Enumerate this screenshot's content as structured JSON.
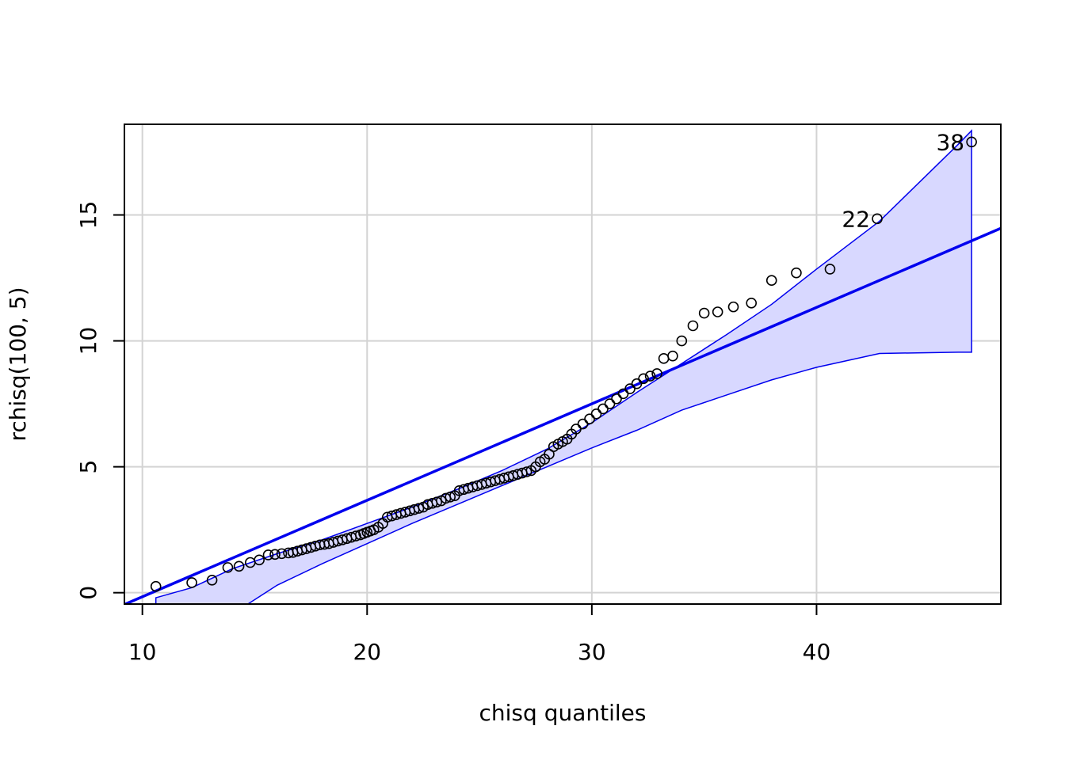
{
  "chart_data": {
    "type": "scatter",
    "xlabel": "chisq quantiles",
    "ylabel": "rchisq(100, 5)",
    "xlim": [
      9.2,
      48.2
    ],
    "ylim": [
      -0.45,
      18.6
    ],
    "x_ticks": [
      10,
      20,
      30,
      40
    ],
    "y_ticks": [
      0,
      5,
      10,
      15
    ],
    "x_tick_labels": [
      "10",
      "20",
      "30",
      "40"
    ],
    "y_tick_labels": [
      "0",
      "5",
      "10",
      "15"
    ],
    "grid": true,
    "colors": {
      "points": "#000000",
      "reference_line": "#0000ee",
      "band_fill": "#d8d8ff",
      "band_edge": "#0000ee",
      "grid": "#d3d3d3"
    },
    "reference_line": {
      "intercept": -3.99,
      "slope": 0.383
    },
    "band": {
      "x": [
        10.6,
        12.2,
        14.0,
        16.0,
        18.0,
        20.0,
        22.0,
        24.0,
        26.0,
        28.0,
        30.0,
        32.0,
        34.0,
        36.0,
        38.0,
        40.0,
        42.8,
        46.3,
        46.9
      ],
      "upper": [
        -0.2,
        0.2,
        0.95,
        1.55,
        2.1,
        2.75,
        3.4,
        4.1,
        4.85,
        5.7,
        6.75,
        7.95,
        9.1,
        10.25,
        11.45,
        12.85,
        14.75,
        17.8,
        18.35
      ],
      "lower": [
        -2.5,
        -1.9,
        -0.85,
        0.3,
        1.15,
        1.95,
        2.75,
        3.5,
        4.25,
        5.0,
        5.75,
        6.45,
        7.25,
        7.85,
        8.45,
        8.95,
        9.5,
        9.55,
        9.55
      ]
    },
    "points": {
      "x": [
        10.6,
        12.2,
        13.1,
        13.8,
        14.3,
        14.8,
        15.2,
        15.6,
        15.9,
        16.2,
        16.5,
        16.7,
        16.9,
        17.1,
        17.3,
        17.5,
        17.7,
        17.9,
        18.1,
        18.3,
        18.5,
        18.7,
        18.9,
        19.1,
        19.3,
        19.5,
        19.7,
        19.85,
        20.0,
        20.15,
        20.3,
        20.5,
        20.7,
        20.9,
        21.1,
        21.3,
        21.5,
        21.7,
        21.9,
        22.1,
        22.3,
        22.5,
        22.7,
        22.9,
        23.1,
        23.3,
        23.5,
        23.7,
        23.9,
        24.1,
        24.3,
        24.5,
        24.7,
        24.9,
        25.1,
        25.3,
        25.5,
        25.7,
        25.9,
        26.1,
        26.3,
        26.5,
        26.7,
        26.9,
        27.1,
        27.3,
        27.5,
        27.7,
        27.9,
        28.1,
        28.3,
        28.5,
        28.7,
        28.9,
        29.1,
        29.3,
        29.6,
        29.9,
        30.2,
        30.5,
        30.8,
        31.1,
        31.4,
        31.7,
        32.0,
        32.3,
        32.6,
        32.9,
        33.2,
        33.6,
        34.0,
        34.5,
        35.0,
        35.6,
        36.3,
        37.1,
        38.0,
        39.1,
        40.6,
        42.7,
        46.9
      ],
      "y": [
        0.25,
        0.4,
        0.5,
        1.0,
        1.05,
        1.2,
        1.3,
        1.5,
        1.52,
        1.55,
        1.58,
        1.6,
        1.65,
        1.7,
        1.75,
        1.8,
        1.85,
        1.9,
        1.92,
        1.95,
        2.0,
        2.05,
        2.1,
        2.15,
        2.2,
        2.25,
        2.3,
        2.35,
        2.4,
        2.45,
        2.5,
        2.6,
        2.75,
        3.0,
        3.05,
        3.1,
        3.15,
        3.2,
        3.25,
        3.3,
        3.35,
        3.4,
        3.5,
        3.55,
        3.6,
        3.65,
        3.75,
        3.8,
        3.85,
        4.05,
        4.1,
        4.15,
        4.2,
        4.25,
        4.3,
        4.35,
        4.4,
        4.45,
        4.5,
        4.55,
        4.6,
        4.65,
        4.7,
        4.75,
        4.8,
        4.85,
        5.0,
        5.2,
        5.3,
        5.5,
        5.8,
        5.9,
        6.0,
        6.1,
        6.3,
        6.5,
        6.7,
        6.9,
        7.1,
        7.3,
        7.5,
        7.7,
        7.9,
        8.1,
        8.3,
        8.5,
        8.6,
        8.7,
        9.3,
        9.4,
        10.0,
        10.6,
        11.1,
        11.15,
        11.35,
        11.5,
        12.4,
        12.7,
        12.85,
        14.85,
        17.9
      ]
    },
    "annotations": [
      {
        "text": "22",
        "x": 42.7,
        "y": 14.85
      },
      {
        "text": "38",
        "x": 46.9,
        "y": 17.9
      }
    ]
  }
}
